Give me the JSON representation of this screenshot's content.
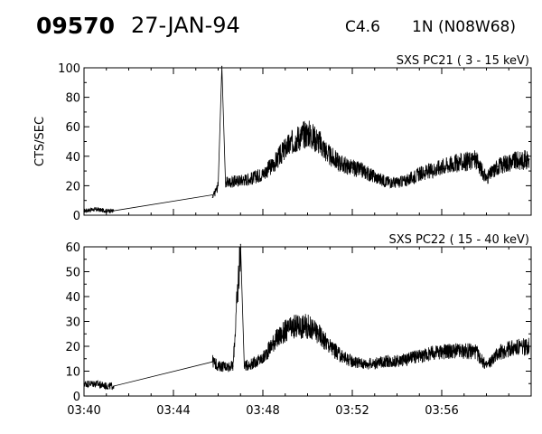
{
  "header": {
    "event_id": "09570",
    "date": "27-JAN-94",
    "goes_class": "C4.6",
    "optical_class": "1N",
    "location": "(N08W68)"
  },
  "chart_data": [
    {
      "type": "line",
      "title": "SXS PC21  (  3 - 15 keV)",
      "ylabel": "CTS/SEC",
      "xlabel": "",
      "xlim": [
        "03:40",
        "04:00"
      ],
      "ylim": [
        0,
        100
      ],
      "x_ticks": [
        "03:40",
        "03:44",
        "03:48",
        "03:52",
        "03:56"
      ],
      "y_ticks": [
        "0",
        "20",
        "40",
        "60",
        "80",
        "100"
      ],
      "grid": false,
      "series": [
        {
          "x": [
            "03:40:00",
            "03:40:30",
            "03:41:00",
            "03:41:20",
            "03:45:45",
            "03:46:00",
            "03:46:10",
            "03:46:20",
            "03:46:45",
            "03:47:30",
            "03:48:00",
            "03:48:30",
            "03:49:00",
            "03:49:30",
            "03:50:00",
            "03:50:30",
            "03:51:00",
            "03:51:30",
            "03:52:00",
            "03:52:30",
            "03:53:00",
            "03:53:30",
            "03:54:00",
            "03:54:30",
            "03:55:00",
            "03:55:30",
            "03:56:00",
            "03:56:30",
            "03:57:00",
            "03:57:30",
            "03:58:00",
            "03:58:30",
            "03:59:00",
            "03:59:55"
          ],
          "y": [
            3,
            4,
            3,
            3,
            12,
            20,
            101,
            22,
            23,
            25,
            28,
            35,
            45,
            52,
            56,
            50,
            40,
            35,
            32,
            30,
            26,
            23,
            22,
            24,
            28,
            30,
            33,
            35,
            36,
            38,
            25,
            33,
            36,
            38
          ]
        }
      ]
    },
    {
      "type": "line",
      "title": "SXS PC22  ( 15 - 40 keV)",
      "ylabel": "",
      "xlabel": "",
      "xlim": [
        "03:40",
        "04:00"
      ],
      "ylim": [
        0,
        60
      ],
      "x_ticks": [
        "03:40",
        "03:44",
        "03:48",
        "03:52",
        "03:56"
      ],
      "y_ticks": [
        "0",
        "10",
        "20",
        "30",
        "40",
        "50",
        "60"
      ],
      "grid": false,
      "series": [
        {
          "x": [
            "03:40:00",
            "03:40:30",
            "03:41:00",
            "03:41:20",
            "03:45:45",
            "03:46:00",
            "03:46:40",
            "03:47:00",
            "03:47:10",
            "03:47:30",
            "03:48:00",
            "03:48:30",
            "03:49:00",
            "03:49:30",
            "03:50:00",
            "03:50:30",
            "03:51:00",
            "03:51:30",
            "03:52:00",
            "03:52:30",
            "03:53:00",
            "03:53:30",
            "03:54:00",
            "03:54:30",
            "03:55:00",
            "03:55:30",
            "03:56:00",
            "03:56:30",
            "03:57:00",
            "03:57:30",
            "03:58:00",
            "03:58:30",
            "03:59:00",
            "03:59:55"
          ],
          "y": [
            5,
            5,
            4,
            4,
            14,
            12,
            12,
            61,
            12,
            13,
            15,
            22,
            26,
            28,
            28,
            25,
            20,
            16,
            14,
            13,
            13,
            14,
            14,
            15,
            16,
            17,
            18,
            18,
            18,
            18,
            12,
            17,
            19,
            20
          ]
        }
      ]
    }
  ]
}
